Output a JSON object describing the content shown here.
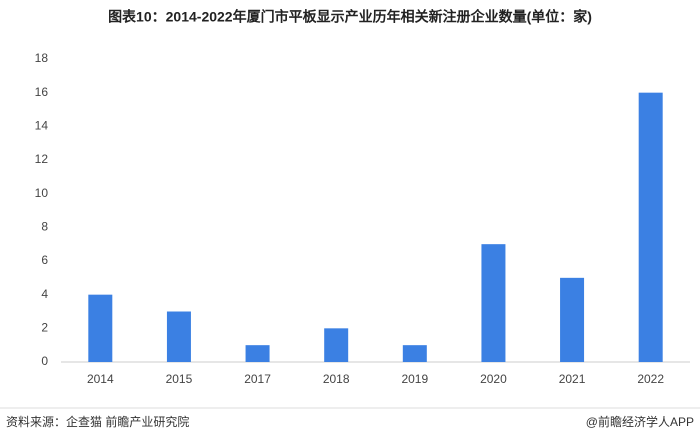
{
  "chart_data": {
    "type": "bar",
    "title": "图表10：2014-2022年厦门市平板显示产业历年相关新注册企业数量(单位：家)",
    "categories": [
      "2014",
      "2015",
      "2017",
      "2018",
      "2019",
      "2020",
      "2021",
      "2022"
    ],
    "values": [
      4,
      3,
      1,
      2,
      1,
      7,
      5,
      16
    ],
    "color": "#3b80e3",
    "ylim": [
      0,
      18
    ],
    "yticks": [
      0,
      2,
      4,
      6,
      8,
      10,
      12,
      14,
      16,
      18
    ],
    "grid": false,
    "source": "资料来源：企查猫 前瞻产业研究院",
    "credit": "@前瞻经济学人APP"
  }
}
